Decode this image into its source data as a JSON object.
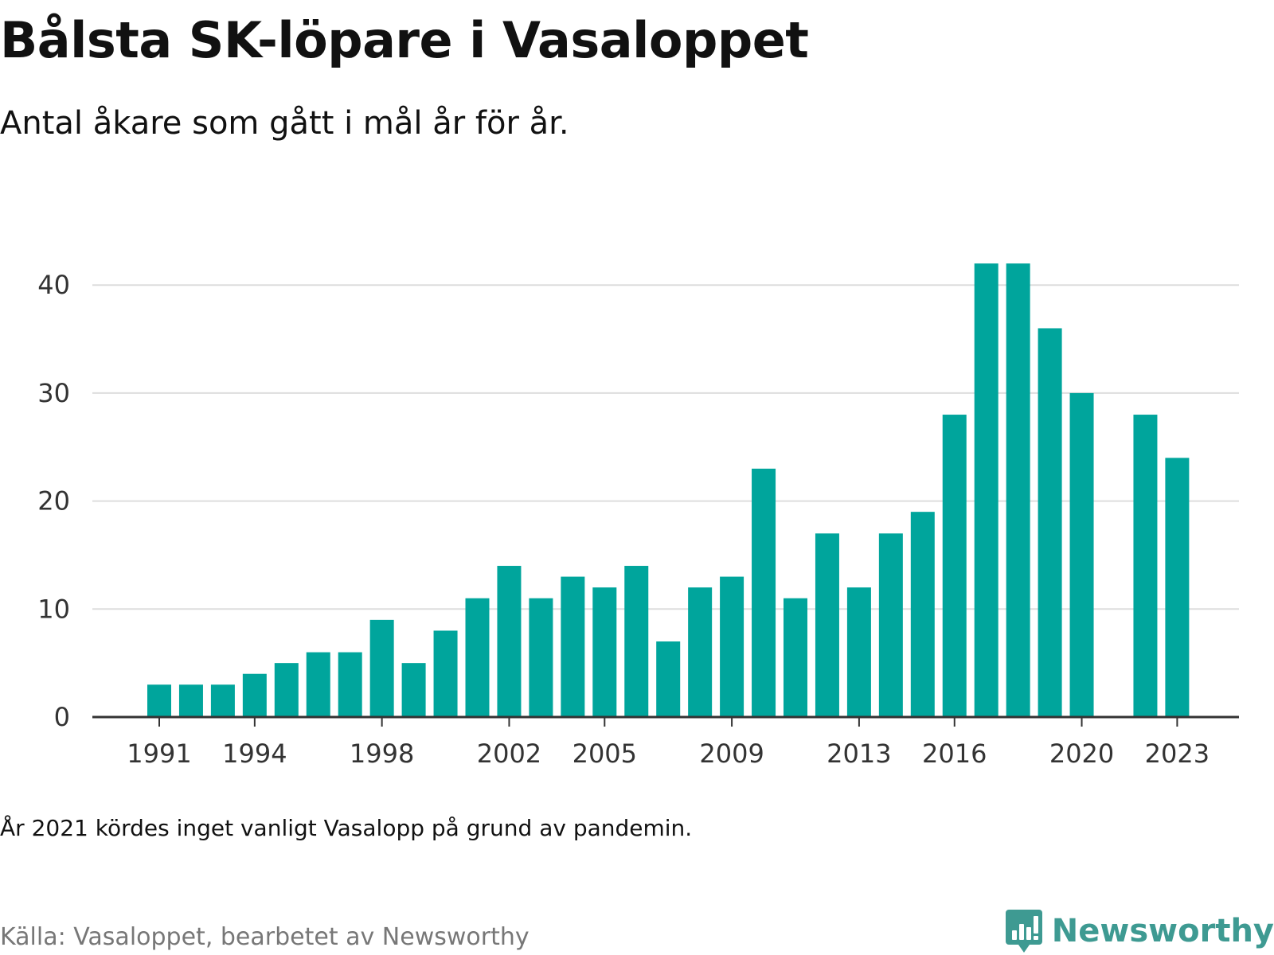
{
  "header": {
    "title": "Bålsta SK-löpare i Vasaloppet",
    "subtitle": "Antal åkare som gått i mål år för år."
  },
  "footer": {
    "note": "År 2021 kördes inget vanligt Vasalopp på grund av pandemin.",
    "source": "Källa: Vasaloppet, bearbetet av Newsworthy",
    "brand": "Newsworthy",
    "brand_icon": "newsworthy-bar-chart-icon"
  },
  "colors": {
    "bar": "#00a59c",
    "grid": "#dddddd",
    "axis": "#333333",
    "brand": "#3e9a92"
  },
  "chart_data": {
    "type": "bar",
    "title": "Bålsta SK-löpare i Vasaloppet",
    "subtitle": "Antal åkare som gått i mål år för år.",
    "xlabel": "",
    "ylabel": "",
    "x": [
      1991,
      1992,
      1993,
      1994,
      1995,
      1996,
      1997,
      1998,
      1999,
      2000,
      2001,
      2002,
      2003,
      2004,
      2005,
      2006,
      2007,
      2008,
      2009,
      2010,
      2011,
      2012,
      2013,
      2014,
      2015,
      2016,
      2017,
      2018,
      2019,
      2020,
      2021,
      2022,
      2023
    ],
    "values": [
      3,
      3,
      3,
      4,
      5,
      6,
      6,
      9,
      5,
      8,
      11,
      14,
      11,
      13,
      12,
      14,
      7,
      12,
      13,
      23,
      11,
      17,
      12,
      17,
      19,
      28,
      42,
      42,
      36,
      30,
      null,
      28,
      24
    ],
    "xticks": [
      1991,
      1994,
      1998,
      2002,
      2005,
      2009,
      2013,
      2016,
      2020,
      2023
    ],
    "yticks": [
      0,
      10,
      20,
      30,
      40
    ],
    "ylim": [
      0,
      42
    ],
    "grid": "horizontal",
    "legend": "none"
  }
}
